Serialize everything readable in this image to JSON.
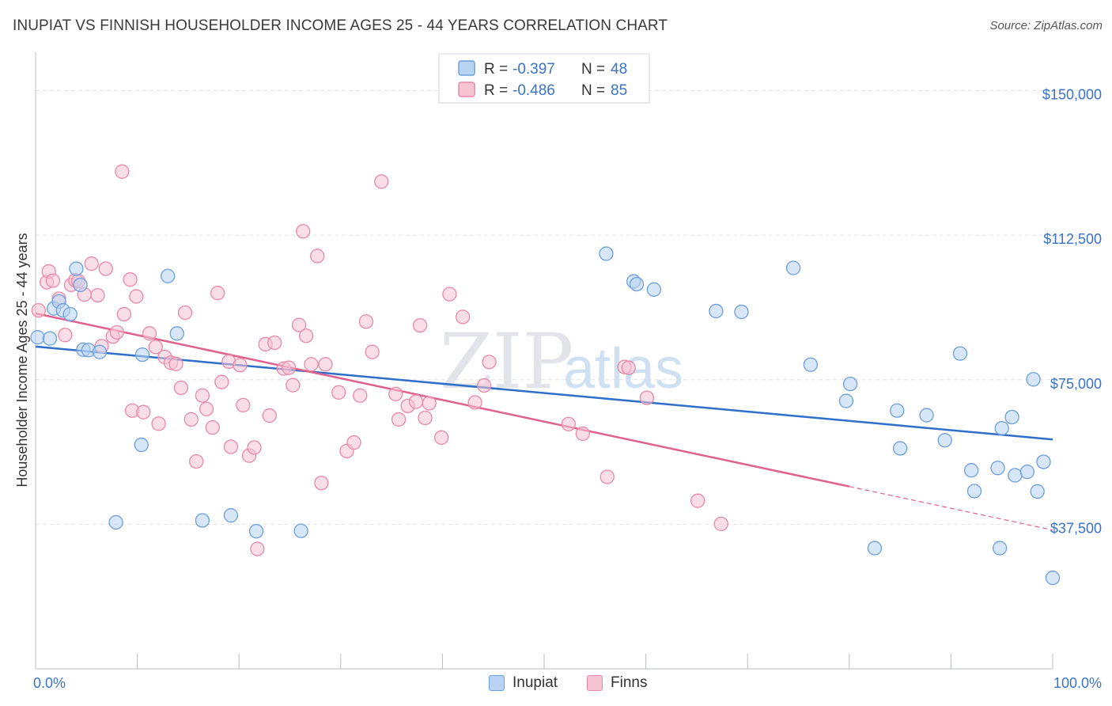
{
  "title": "INUPIAT VS FINNISH HOUSEHOLDER INCOME AGES 25 - 44 YEARS CORRELATION CHART",
  "source": "Source: ZipAtlas.com",
  "watermark": {
    "zip": "ZIP",
    "atlas": "atlas"
  },
  "legend": {
    "r_label": "R =",
    "n_label": "N =",
    "inupiat": {
      "r": "-0.397",
      "n": "48"
    },
    "finns": {
      "r": "-0.486",
      "n": "85"
    }
  },
  "bottom_legend": {
    "inupiat": "Inupiat",
    "finns": "Finns"
  },
  "colors": {
    "inupiat_fill": "#b8d3f3",
    "inupiat_stroke": "#6c9fde",
    "inupiat_line": "#2e6fc9",
    "finns_fill": "#f6c3d3",
    "finns_stroke": "#e889a8",
    "finns_line": "#e0608e",
    "axis_text": "#3b73c4",
    "grid": "#dde1e8"
  },
  "chart_data": {
    "type": "scatter",
    "title": "INUPIAT VS FINNISH HOUSEHOLDER INCOME AGES 25 - 44 YEARS CORRELATION CHART",
    "xlabel": "",
    "ylabel": "Householder Income Ages 25 - 44 years",
    "xlim": [
      0,
      100
    ],
    "ylim": [
      0,
      157500
    ],
    "x_tick_labels": [
      "0.0%",
      "100.0%"
    ],
    "y_ticks": [
      37500,
      75000,
      112500,
      150000
    ],
    "y_tick_labels": [
      "$37,500",
      "$75,000",
      "$112,500",
      "$150,000"
    ],
    "grid": true,
    "legend_position": "top-center",
    "series": [
      {
        "name": "Inupiat",
        "r": -0.397,
        "n": 48,
        "trend": {
          "x": [
            0,
            100
          ],
          "y": [
            83600,
            59500
          ]
        },
        "points": [
          [
            0.2,
            86000
          ],
          [
            1.4,
            85700
          ],
          [
            1.8,
            93500
          ],
          [
            2.3,
            95300
          ],
          [
            2.7,
            93000
          ],
          [
            3.4,
            92000
          ],
          [
            4.0,
            103800
          ],
          [
            4.4,
            99600
          ],
          [
            4.7,
            82800
          ],
          [
            5.2,
            82700
          ],
          [
            6.3,
            82200
          ],
          [
            7.9,
            38000
          ],
          [
            10.5,
            81500
          ],
          [
            10.4,
            58100
          ],
          [
            13.0,
            101900
          ],
          [
            13.9,
            87000
          ],
          [
            16.4,
            38500
          ],
          [
            19.2,
            39800
          ],
          [
            21.7,
            35700
          ],
          [
            26.1,
            35800
          ],
          [
            56.1,
            107700
          ],
          [
            58.8,
            100500
          ],
          [
            59.1,
            99800
          ],
          [
            60.8,
            98400
          ],
          [
            66.9,
            92800
          ],
          [
            69.4,
            92600
          ],
          [
            74.5,
            104000
          ],
          [
            76.2,
            78900
          ],
          [
            79.7,
            69500
          ],
          [
            80.1,
            73900
          ],
          [
            82.5,
            31300
          ],
          [
            84.7,
            67000
          ],
          [
            85.0,
            57200
          ],
          [
            87.6,
            65800
          ],
          [
            89.4,
            59300
          ],
          [
            90.9,
            81800
          ],
          [
            92.0,
            51500
          ],
          [
            92.3,
            46100
          ],
          [
            94.6,
            52100
          ],
          [
            94.8,
            31300
          ],
          [
            95.0,
            62400
          ],
          [
            96.0,
            65300
          ],
          [
            96.3,
            50200
          ],
          [
            97.5,
            51100
          ],
          [
            98.1,
            75100
          ],
          [
            98.5,
            46000
          ],
          [
            99.1,
            53700
          ],
          [
            100.0,
            23600
          ]
        ]
      },
      {
        "name": "Finns",
        "r": -0.486,
        "n": 85,
        "trend": {
          "x": [
            0,
            80
          ],
          "y": [
            92200,
            47300
          ]
        },
        "trend_dashed": {
          "x": [
            80,
            100
          ],
          "y": [
            47300,
            36000
          ]
        },
        "points": [
          [
            0.3,
            93000
          ],
          [
            1.1,
            100300
          ],
          [
            1.3,
            103100
          ],
          [
            1.7,
            100700
          ],
          [
            2.3,
            96000
          ],
          [
            2.9,
            86600
          ],
          [
            3.5,
            99600
          ],
          [
            3.9,
            100800
          ],
          [
            4.2,
            100600
          ],
          [
            4.8,
            97100
          ],
          [
            5.5,
            105100
          ],
          [
            6.1,
            96900
          ],
          [
            6.5,
            83700
          ],
          [
            6.9,
            103800
          ],
          [
            7.6,
            86200
          ],
          [
            8.0,
            87300
          ],
          [
            8.5,
            129000
          ],
          [
            8.7,
            92000
          ],
          [
            9.3,
            101000
          ],
          [
            9.5,
            67000
          ],
          [
            9.9,
            96600
          ],
          [
            10.6,
            66600
          ],
          [
            11.2,
            87000
          ],
          [
            11.8,
            83500
          ],
          [
            12.1,
            63600
          ],
          [
            12.7,
            80900
          ],
          [
            13.3,
            79400
          ],
          [
            13.8,
            79100
          ],
          [
            14.3,
            72900
          ],
          [
            14.7,
            92400
          ],
          [
            15.3,
            64700
          ],
          [
            15.8,
            53800
          ],
          [
            16.4,
            70900
          ],
          [
            16.8,
            67400
          ],
          [
            17.4,
            62600
          ],
          [
            17.9,
            97500
          ],
          [
            18.3,
            74400
          ],
          [
            19.0,
            79700
          ],
          [
            19.2,
            57600
          ],
          [
            20.1,
            78800
          ],
          [
            20.4,
            68400
          ],
          [
            21.0,
            55300
          ],
          [
            21.5,
            57400
          ],
          [
            21.8,
            31100
          ],
          [
            22.6,
            84200
          ],
          [
            23.0,
            65700
          ],
          [
            23.5,
            84600
          ],
          [
            24.4,
            77900
          ],
          [
            24.9,
            78100
          ],
          [
            25.3,
            73600
          ],
          [
            25.9,
            89200
          ],
          [
            26.3,
            113500
          ],
          [
            26.6,
            86400
          ],
          [
            27.1,
            79000
          ],
          [
            27.7,
            107100
          ],
          [
            28.1,
            48200
          ],
          [
            28.5,
            79000
          ],
          [
            29.8,
            71700
          ],
          [
            30.6,
            56500
          ],
          [
            31.3,
            58700
          ],
          [
            31.9,
            70900
          ],
          [
            32.5,
            90100
          ],
          [
            33.1,
            82200
          ],
          [
            34.0,
            126400
          ],
          [
            35.4,
            71300
          ],
          [
            35.7,
            64700
          ],
          [
            36.6,
            68200
          ],
          [
            37.4,
            69300
          ],
          [
            37.8,
            89100
          ],
          [
            38.3,
            65100
          ],
          [
            38.7,
            68900
          ],
          [
            39.9,
            60000
          ],
          [
            40.7,
            97200
          ],
          [
            42.0,
            91300
          ],
          [
            43.2,
            69100
          ],
          [
            44.1,
            73500
          ],
          [
            44.6,
            79600
          ],
          [
            52.4,
            63500
          ],
          [
            53.8,
            61000
          ],
          [
            56.2,
            49800
          ],
          [
            57.9,
            78300
          ],
          [
            58.3,
            78100
          ],
          [
            60.1,
            70300
          ],
          [
            65.1,
            43600
          ],
          [
            67.4,
            37600
          ]
        ]
      }
    ]
  }
}
